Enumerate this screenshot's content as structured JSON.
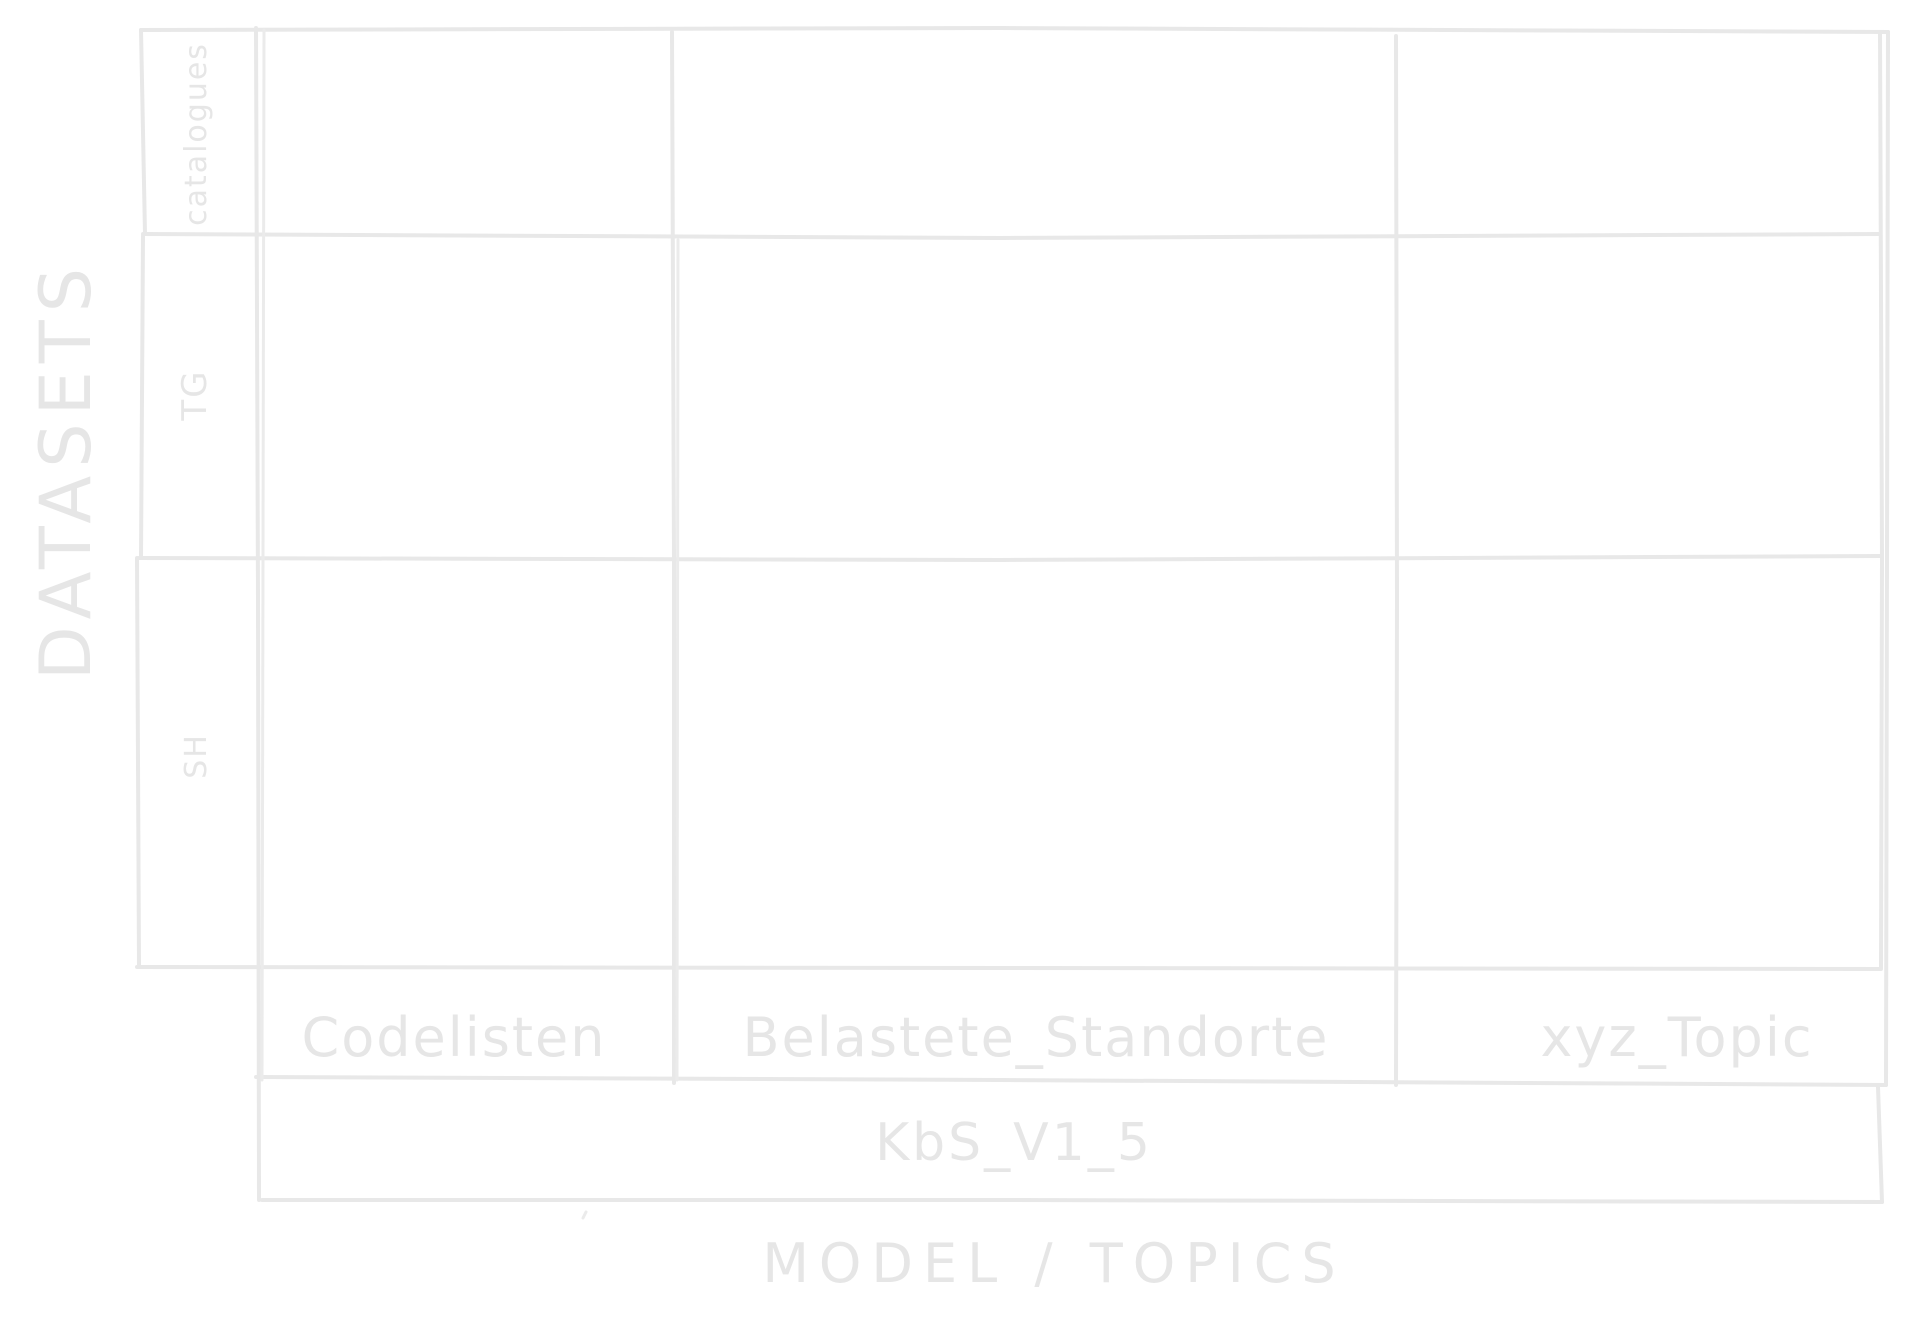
{
  "axes": {
    "y_label": "DATASETS",
    "x_label": "MODEL / TOPICS"
  },
  "rows": [
    {
      "label": "catalogues"
    },
    {
      "label": "TG"
    },
    {
      "label": "SH"
    }
  ],
  "topics": [
    {
      "label": "Codelisten"
    },
    {
      "label": "Belastete_Standorte"
    },
    {
      "label": "xyz_Topic"
    }
  ],
  "model": {
    "label": "KbS_V1_5"
  }
}
